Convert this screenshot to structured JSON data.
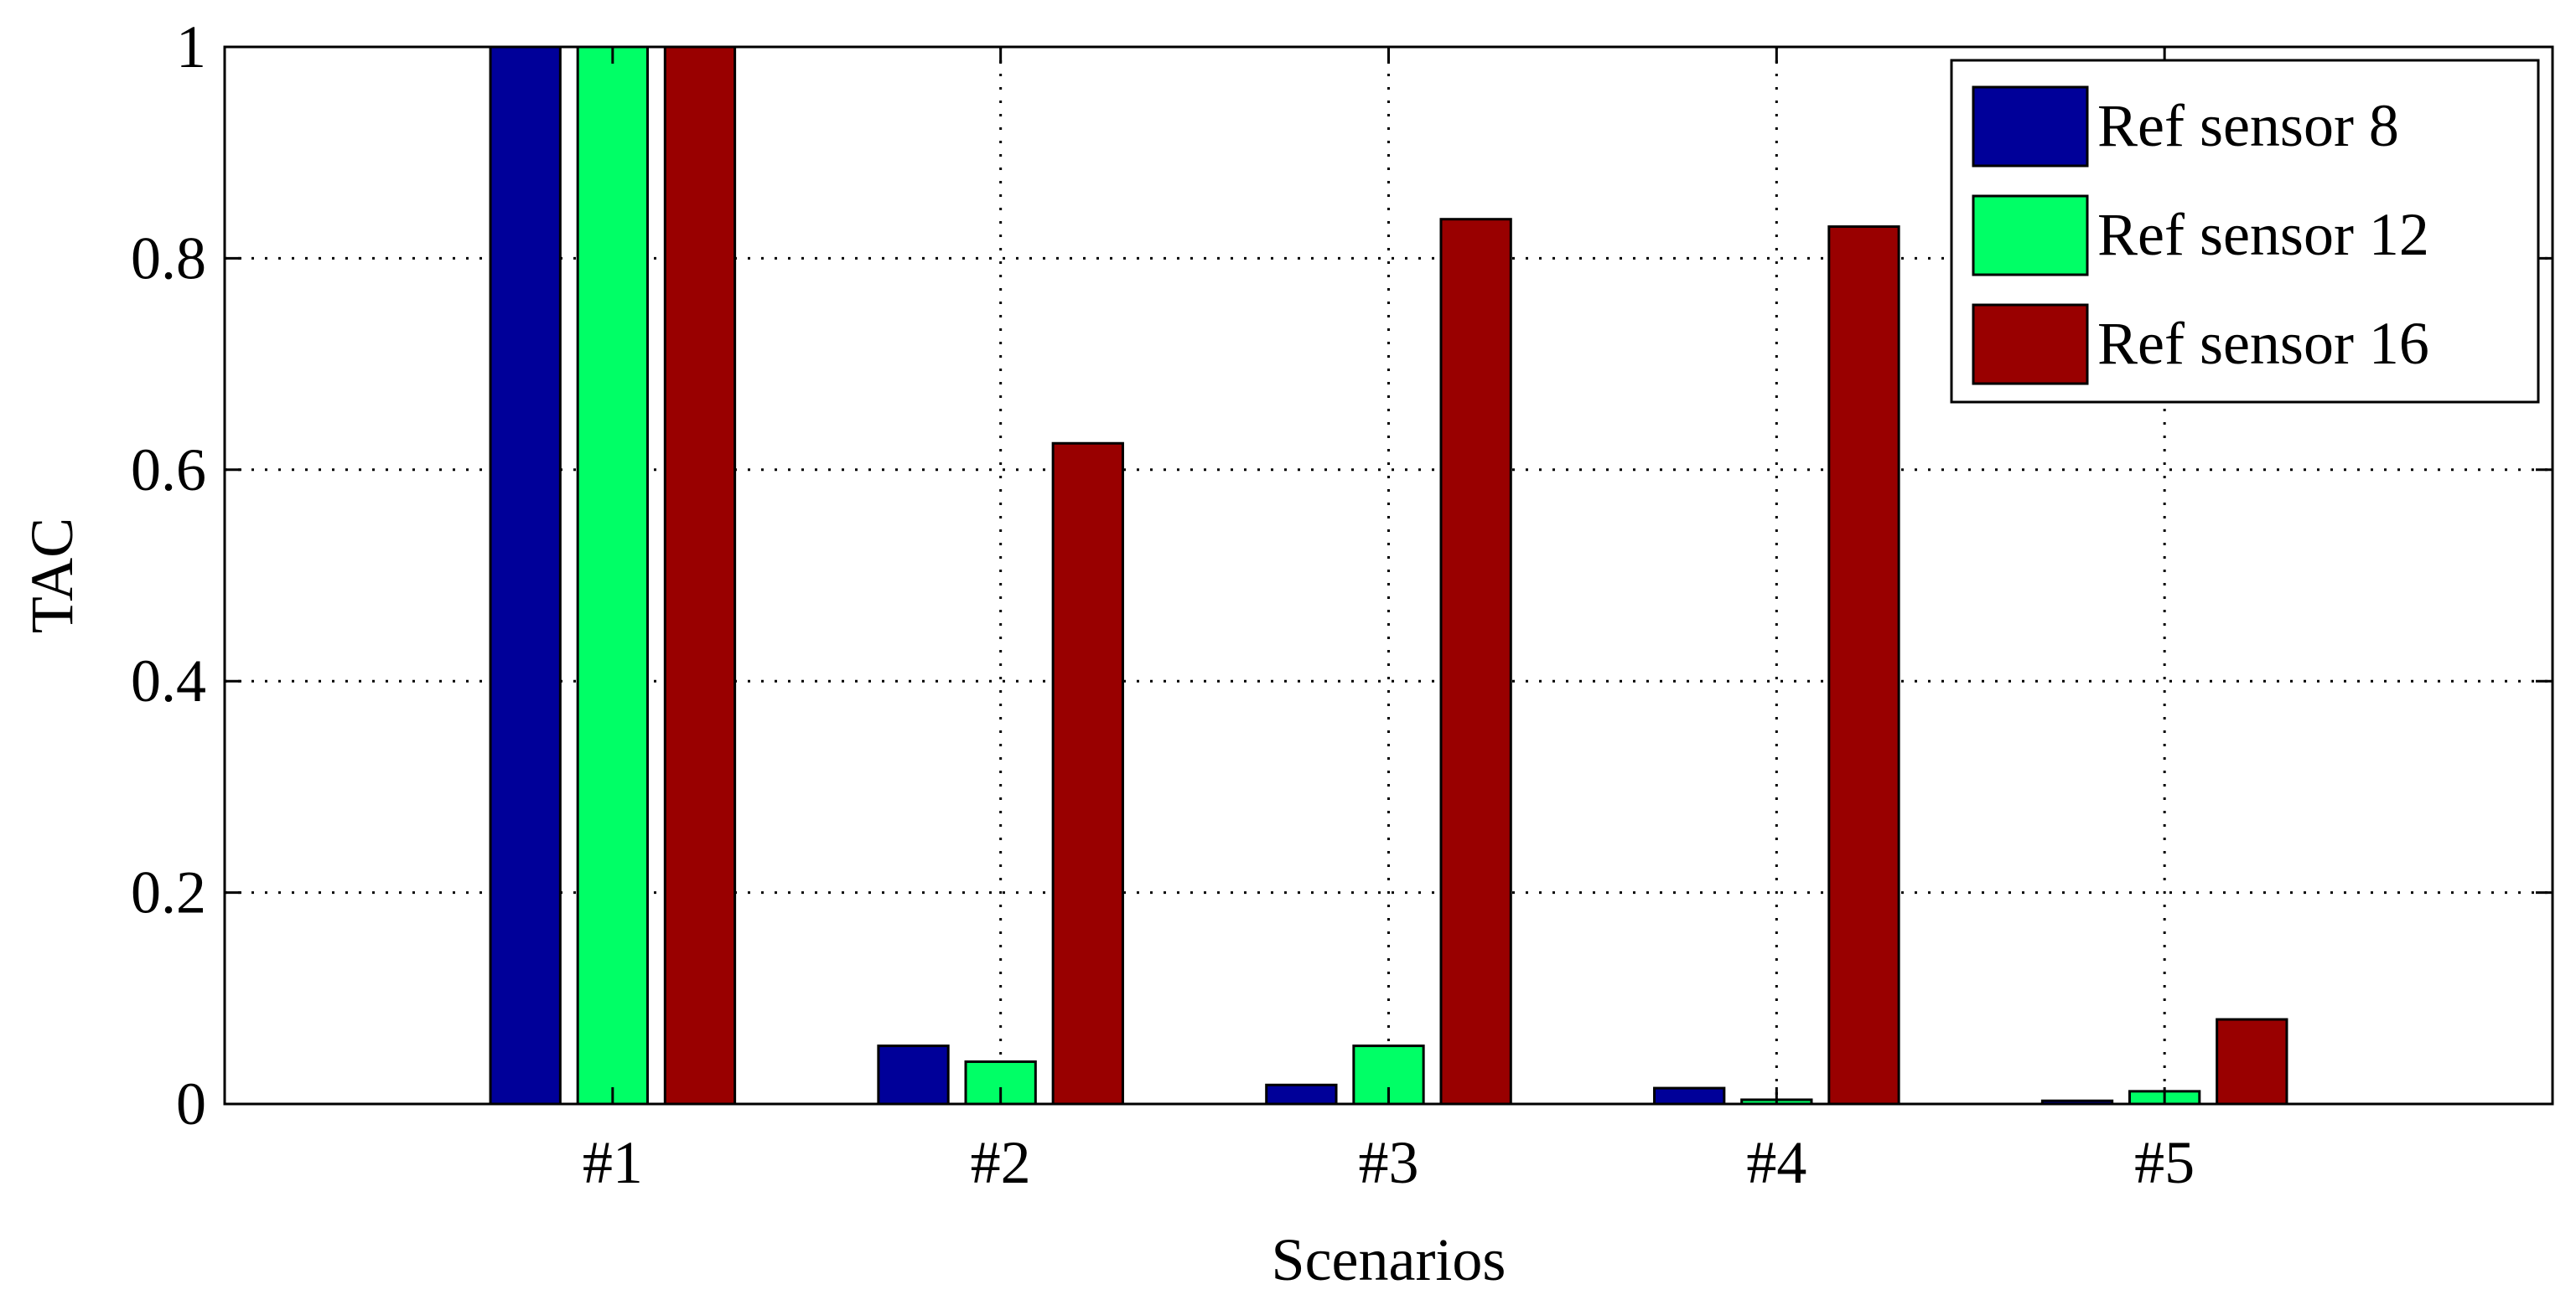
{
  "chart_data": {
    "type": "bar",
    "title": "",
    "xlabel": "Scenarios",
    "ylabel": "TAC",
    "categories": [
      "#1",
      "#2",
      "#3",
      "#4",
      "#5"
    ],
    "series": [
      {
        "name": "Ref sensor 8",
        "color": "#000099",
        "values": [
          1.0,
          0.055,
          0.018,
          0.015,
          0.003
        ]
      },
      {
        "name": "Ref sensor 12",
        "color": "#00ff66",
        "values": [
          1.0,
          0.04,
          0.055,
          0.004,
          0.012
        ]
      },
      {
        "name": "Ref sensor 16",
        "color": "#990000",
        "values": [
          1.0,
          0.625,
          0.837,
          0.83,
          0.08
        ]
      }
    ],
    "ylim": [
      0,
      1
    ],
    "xlim": [
      0,
      6
    ],
    "yticks": [
      0,
      0.2,
      0.4,
      0.6,
      0.8,
      1
    ],
    "ytick_labels": [
      "0",
      "0.2",
      "0.4",
      "0.6",
      "0.8",
      "1"
    ],
    "grid": true,
    "legend_position": "top-right"
  }
}
